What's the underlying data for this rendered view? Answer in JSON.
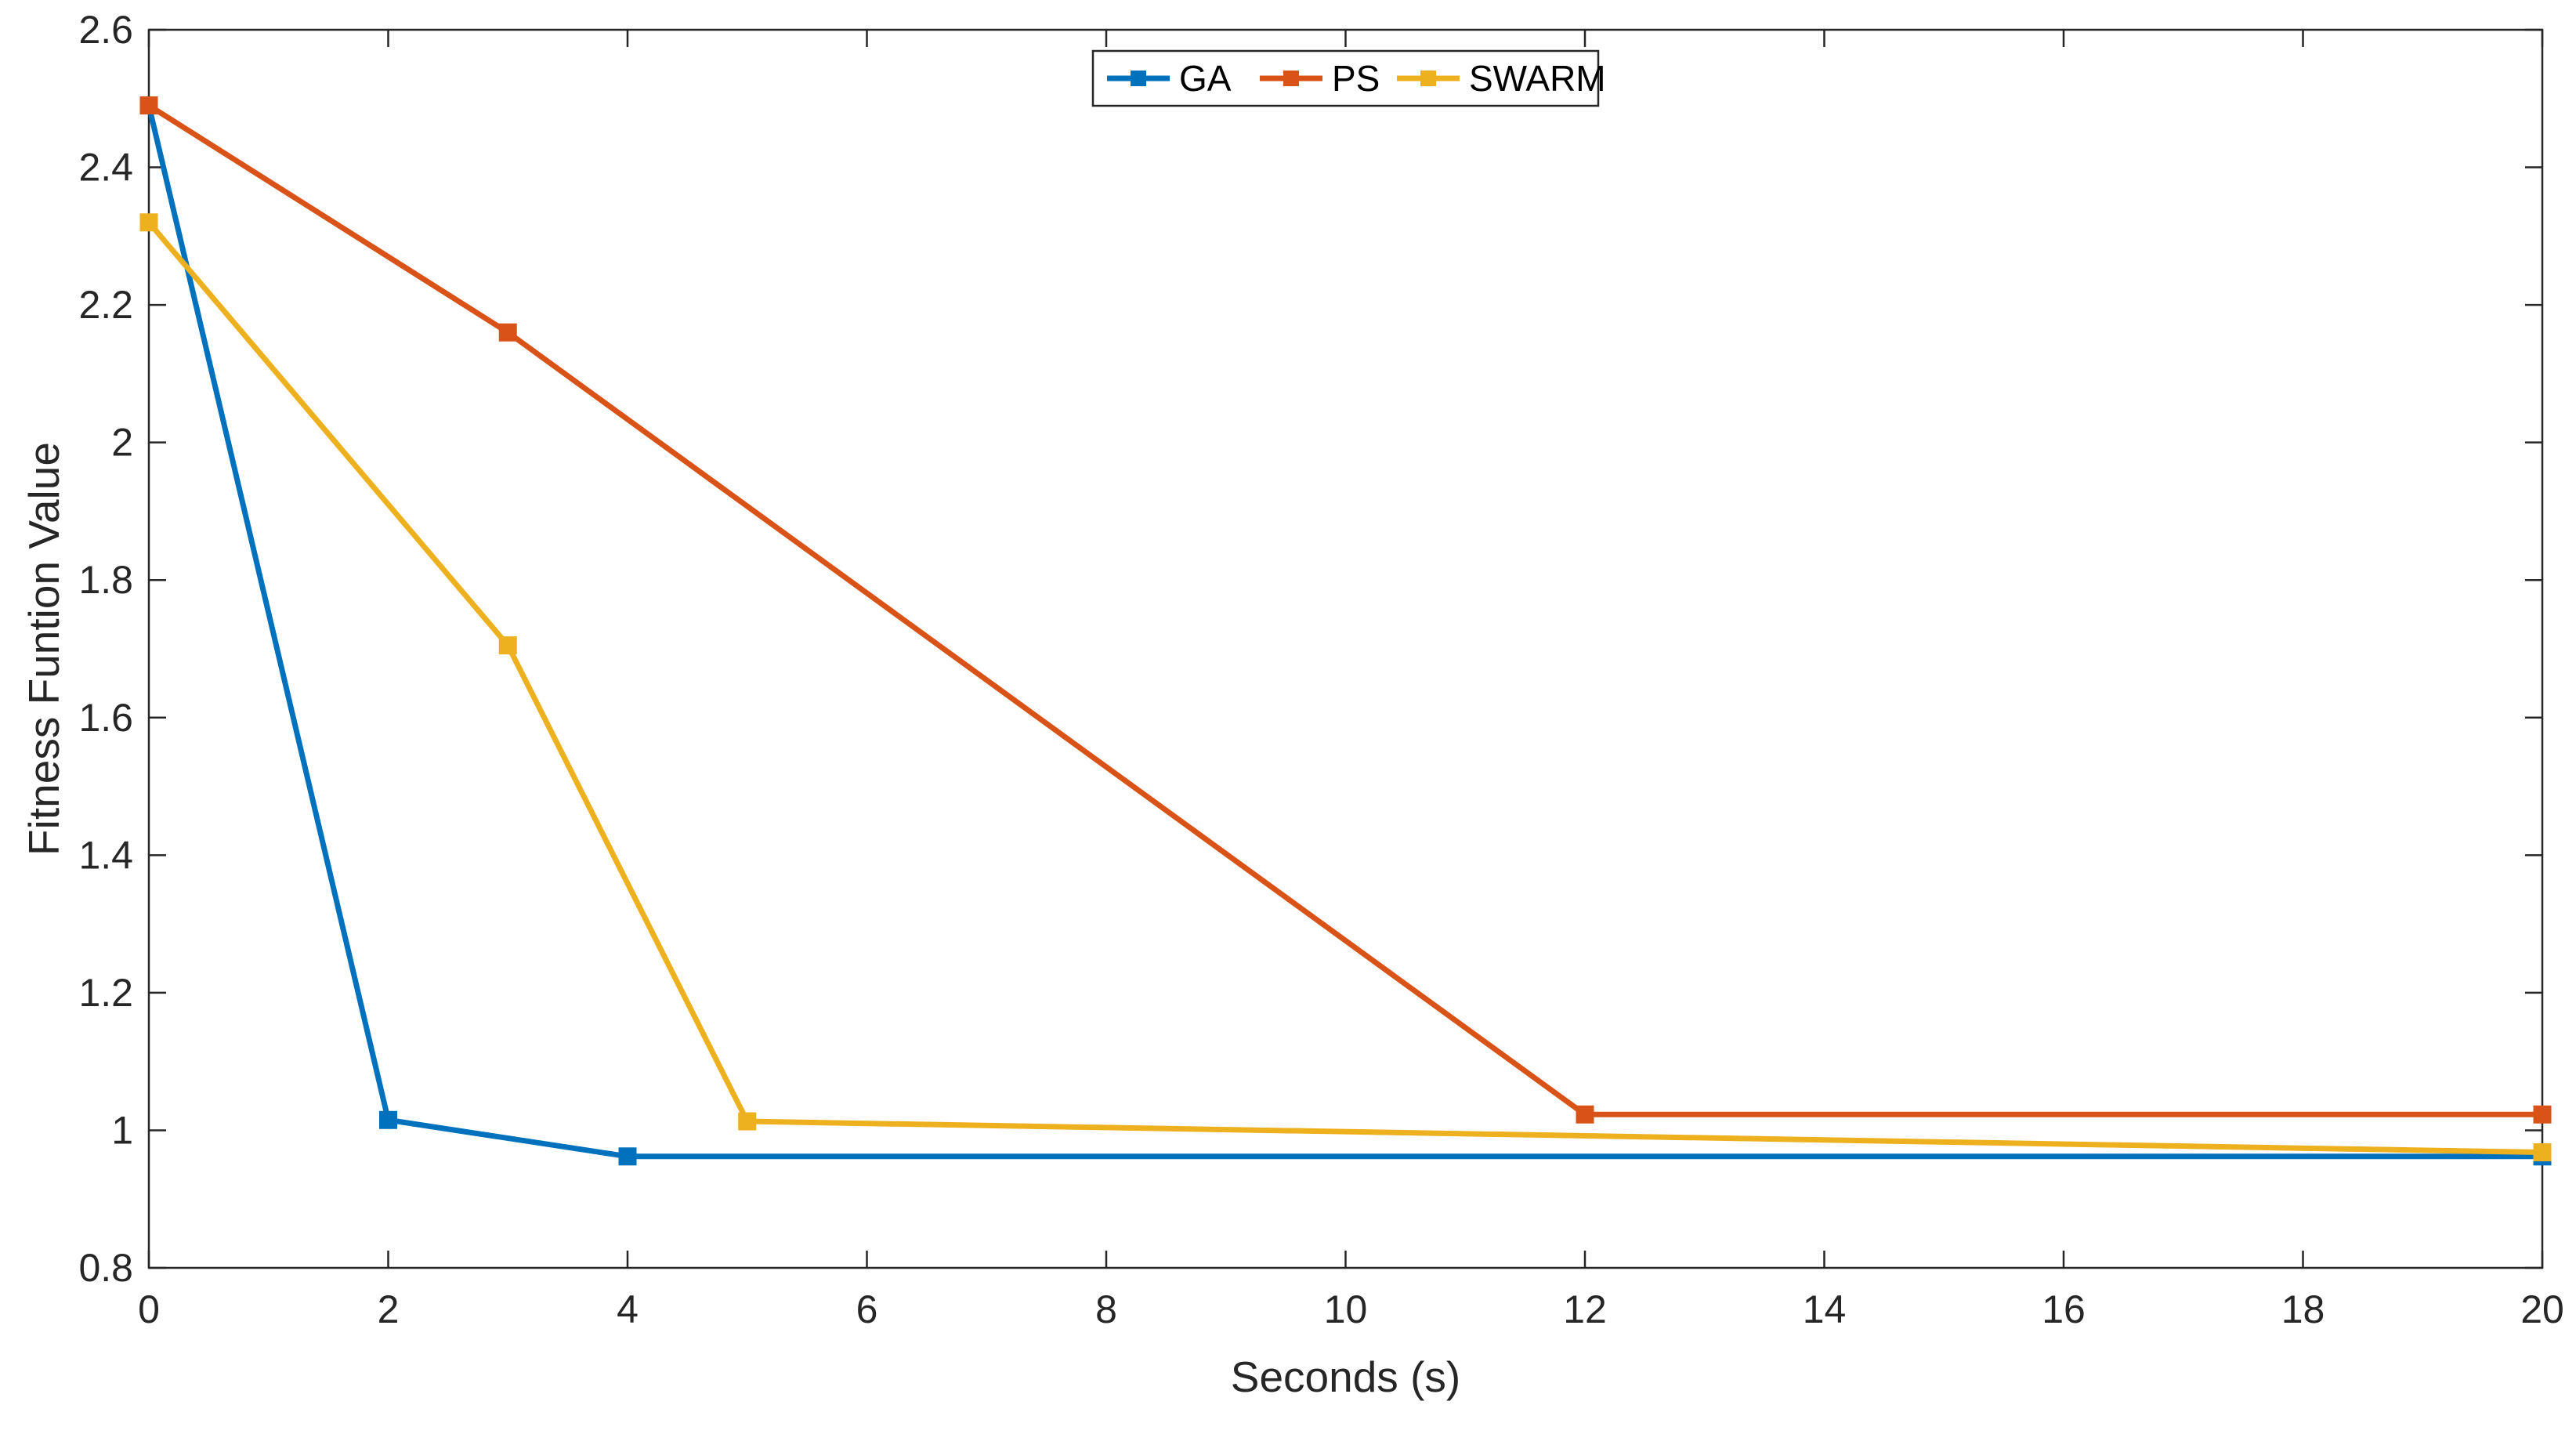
{
  "chart_data": {
    "type": "line",
    "xlabel": "Seconds (s)",
    "ylabel": "Fitness Funtion Value",
    "xlim": [
      0,
      20
    ],
    "ylim": [
      0.8,
      2.6
    ],
    "xticks": [
      0,
      2,
      4,
      6,
      8,
      10,
      12,
      14,
      16,
      18,
      20
    ],
    "yticks": [
      0.8,
      1,
      1.2,
      1.4,
      1.6,
      1.8,
      2,
      2.2,
      2.4,
      2.6
    ],
    "grid": false,
    "legend_position": "top-center",
    "series": [
      {
        "name": "GA",
        "color": "#0072BD",
        "marker": "square",
        "x": [
          0,
          2,
          4,
          20
        ],
        "y": [
          2.49,
          1.015,
          0.962,
          0.962
        ]
      },
      {
        "name": "PS",
        "color": "#D95319",
        "marker": "square",
        "x": [
          0,
          3,
          12,
          20
        ],
        "y": [
          2.49,
          2.16,
          1.023,
          1.023
        ]
      },
      {
        "name": "SWARM",
        "color": "#EDB120",
        "marker": "square",
        "x": [
          0,
          3,
          5,
          20
        ],
        "y": [
          2.32,
          1.705,
          1.013,
          0.968
        ]
      }
    ]
  }
}
